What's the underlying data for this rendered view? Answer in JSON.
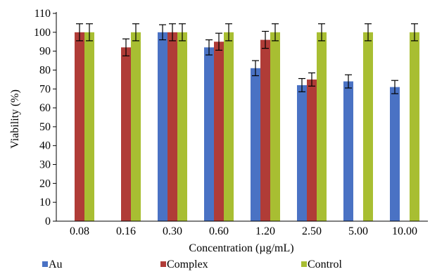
{
  "chart_data": {
    "type": "bar",
    "ylabel": "Viability (%)",
    "xlabel": "Concentration (µg/mL)",
    "ylim": [
      0,
      110
    ],
    "yticks": [
      0,
      10,
      20,
      30,
      40,
      50,
      60,
      70,
      80,
      90,
      100,
      110
    ],
    "grid": false,
    "legend_position": "bottom",
    "error_bars": true,
    "categories": [
      "0.08",
      "0.16",
      "0.30",
      "0.60",
      "1.20",
      "2.50",
      "5.00",
      "10.00"
    ],
    "series": [
      {
        "name": "Au",
        "color": "#4a72c4",
        "values": [
          null,
          null,
          100,
          92,
          81,
          72,
          74,
          71
        ],
        "errors": [
          null,
          null,
          4,
          4,
          4,
          3.5,
          3.5,
          3.5
        ]
      },
      {
        "name": "Complex",
        "color": "#b03c37",
        "values": [
          100,
          92,
          100,
          95,
          96,
          75,
          null,
          null
        ],
        "errors": [
          4.5,
          4.5,
          4.5,
          4.5,
          4.5,
          3.5,
          null,
          null
        ]
      },
      {
        "name": "Control",
        "color": "#a8be32",
        "values": [
          100,
          100,
          100,
          100,
          100,
          100,
          100,
          100
        ],
        "errors": [
          4.5,
          4.5,
          4.5,
          4.5,
          4.5,
          4.5,
          4.5,
          4.5
        ]
      }
    ]
  }
}
